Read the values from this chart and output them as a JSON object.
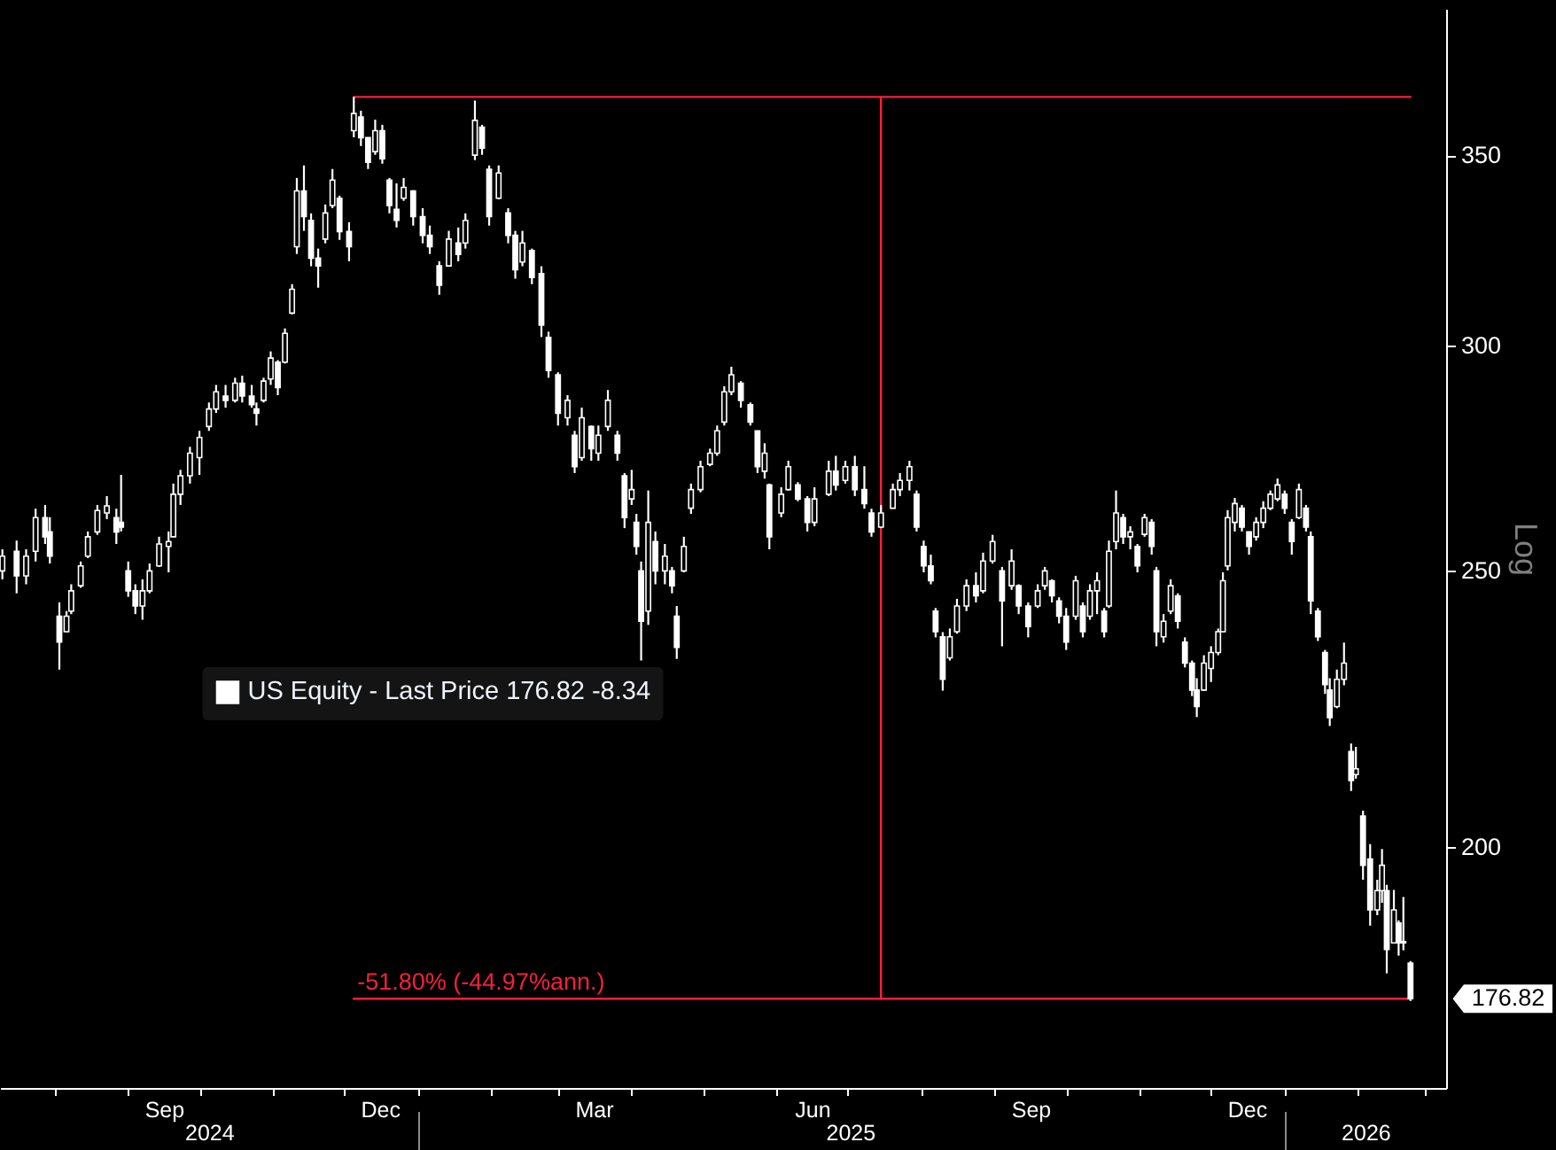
{
  "chart_data": {
    "type": "candlestick",
    "y2label": "Log",
    "log": "y2",
    "legend": "left",
    "xlim": [
      "2024-07-09",
      "2026-03-10"
    ],
    "xticks": [
      {
        "value": "2024-08-01",
        "label": null
      },
      {
        "value": "2024-09-01",
        "label": null
      },
      {
        "value": "2024-09-16",
        "label": "Sep"
      },
      {
        "value": "2024-10-01",
        "label": null
      },
      {
        "value": "2024-11-01",
        "label": null
      },
      {
        "value": "2024-12-01",
        "label": null
      },
      {
        "value": "2024-12-16",
        "label": "Dec"
      },
      {
        "value": "2025-01-01",
        "label": null
      },
      {
        "value": "2025-02-01",
        "label": null
      },
      {
        "value": "2025-03-01",
        "label": null
      },
      {
        "value": "2025-03-16",
        "label": "Mar"
      },
      {
        "value": "2025-04-01",
        "label": null
      },
      {
        "value": "2025-05-01",
        "label": null
      },
      {
        "value": "2025-06-01",
        "label": null
      },
      {
        "value": "2025-06-16",
        "label": "Jun"
      },
      {
        "value": "2025-07-01",
        "label": null
      },
      {
        "value": "2025-08-01",
        "label": null
      },
      {
        "value": "2025-09-01",
        "label": null
      },
      {
        "value": "2025-09-16",
        "label": "Sep"
      },
      {
        "value": "2025-10-01",
        "label": null
      },
      {
        "value": "2025-11-01",
        "label": null
      },
      {
        "value": "2025-12-01",
        "label": null
      },
      {
        "value": "2025-12-16",
        "label": "Dec"
      },
      {
        "value": "2026-01-01",
        "label": null
      },
      {
        "value": "2026-02-01",
        "label": null
      },
      {
        "value": "2026-03-01",
        "label": null
      }
    ],
    "x2lim": [
      "2024-07-09",
      "2026-03-10"
    ],
    "x2ticks": [
      {
        "value": "2024-10-05",
        "label": "2024"
      },
      {
        "value": "2025-01-01",
        "label": null
      },
      {
        "value": "2025-07-02",
        "label": "2025"
      },
      {
        "value": "2026-01-01",
        "label": null
      },
      {
        "value": "2026-02-04",
        "label": "2026"
      }
    ],
    "y2lim": [
      164.5,
      394
    ],
    "y2ticks": [
      200,
      250,
      300,
      350
    ],
    "series": [
      {
        "type": "line",
        "axis": "y2",
        "color": "#f5203c",
        "x": [
          "2024-12-05",
          "2026-02-23"
        ],
        "values": [
          366.9,
          366.9
        ]
      },
      {
        "type": "line",
        "axis": "y2",
        "color": "#f5203c",
        "x": [
          "2024-12-05",
          "2026-02-23"
        ],
        "values": [
          176.82,
          176.82
        ]
      },
      {
        "type": "line",
        "axis": "y2",
        "color": "#f5203c",
        "x": [
          "2025-07-15",
          "2025-07-15"
        ],
        "values": [
          366.9,
          176.82
        ]
      },
      {
        "name": "US Equity - Last Price 176.82 -8.34",
        "axis": "y2",
        "color": "#ffffff",
        "x": [
          "2024-07-10",
          "2024-07-16",
          "2024-07-20",
          "2024-07-24",
          "2024-07-28",
          "2024-07-30",
          "2024-08-03",
          "2024-08-06",
          "2024-08-08",
          "2024-08-12",
          "2024-08-15",
          "2024-08-19",
          "2024-08-23",
          "2024-08-27",
          "2024-08-29",
          "2024-09-01",
          "2024-09-04",
          "2024-09-07",
          "2024-09-10",
          "2024-09-14",
          "2024-09-18",
          "2024-09-20",
          "2024-09-23",
          "2024-09-27",
          "2024-10-01",
          "2024-10-05",
          "2024-10-08",
          "2024-10-12",
          "2024-10-16",
          "2024-10-19",
          "2024-10-23",
          "2024-10-25",
          "2024-10-28",
          "2024-10-31",
          "2024-11-03",
          "2024-11-06",
          "2024-11-09",
          "2024-11-11",
          "2024-11-14",
          "2024-11-17",
          "2024-11-20",
          "2024-11-23",
          "2024-11-26",
          "2024-11-29",
          "2024-12-03",
          "2024-12-05",
          "2024-12-08",
          "2024-12-11",
          "2024-12-14",
          "2024-12-17",
          "2024-12-20",
          "2024-12-23",
          "2024-12-26",
          "2024-12-30",
          "2025-01-03",
          "2025-01-06",
          "2025-01-10",
          "2025-01-14",
          "2025-01-18",
          "2025-01-21",
          "2025-01-25",
          "2025-01-28",
          "2025-01-31",
          "2025-02-04",
          "2025-02-08",
          "2025-02-11",
          "2025-02-14",
          "2025-02-18",
          "2025-02-22",
          "2025-02-25",
          "2025-03-01",
          "2025-03-05",
          "2025-03-08",
          "2025-03-11",
          "2025-03-15",
          "2025-03-18",
          "2025-03-22",
          "2025-03-26",
          "2025-03-29",
          "2025-04-01",
          "2025-04-03",
          "2025-04-05",
          "2025-04-08",
          "2025-04-11",
          "2025-04-15",
          "2025-04-18",
          "2025-04-20",
          "2025-04-23",
          "2025-04-26",
          "2025-04-30",
          "2025-05-04",
          "2025-05-07",
          "2025-05-10",
          "2025-05-13",
          "2025-05-17",
          "2025-05-21",
          "2025-05-24",
          "2025-05-27",
          "2025-05-29",
          "2025-06-03",
          "2025-06-06",
          "2025-06-10",
          "2025-06-14",
          "2025-06-17",
          "2025-06-23",
          "2025-06-26",
          "2025-06-30",
          "2025-07-04",
          "2025-07-08",
          "2025-07-11",
          "2025-07-15",
          "2025-07-20",
          "2025-07-23",
          "2025-07-27",
          "2025-07-30",
          "2025-08-02",
          "2025-08-05",
          "2025-08-07",
          "2025-08-10",
          "2025-08-13",
          "2025-08-16",
          "2025-08-20",
          "2025-08-24",
          "2025-08-27",
          "2025-08-31",
          "2025-09-04",
          "2025-09-08",
          "2025-09-11",
          "2025-09-15",
          "2025-09-19",
          "2025-09-22",
          "2025-09-25",
          "2025-09-28",
          "2025-10-01",
          "2025-10-05",
          "2025-10-08",
          "2025-10-11",
          "2025-10-14",
          "2025-10-17",
          "2025-10-19",
          "2025-10-22",
          "2025-10-25",
          "2025-10-28",
          "2025-10-31",
          "2025-11-03",
          "2025-11-06",
          "2025-11-08",
          "2025-11-11",
          "2025-11-14",
          "2025-11-17",
          "2025-11-20",
          "2025-11-23",
          "2025-11-25",
          "2025-11-28",
          "2025-12-01",
          "2025-12-04",
          "2025-12-06",
          "2025-12-08",
          "2025-12-11",
          "2025-12-14",
          "2025-12-17",
          "2025-12-20",
          "2025-12-23",
          "2025-12-26",
          "2025-12-29",
          "2026-01-01",
          "2026-01-04",
          "2026-01-07",
          "2026-01-10",
          "2026-01-12",
          "2026-01-15",
          "2026-01-18",
          "2026-01-20",
          "2026-01-23",
          "2026-01-26",
          "2026-01-29",
          "2026-01-31",
          "2026-02-03",
          "2026-02-06",
          "2026-02-09",
          "2026-02-11",
          "2026-02-13",
          "2026-02-16",
          "2026-02-18",
          "2026-02-20",
          "2026-02-23"
        ],
        "ohlc": [
          [
            250,
            254.4,
            248.3,
            253
          ],
          [
            254,
            256.2,
            245.5,
            249
          ],
          [
            249,
            254.4,
            247.3,
            253
          ],
          [
            254,
            262.9,
            251.9,
            261
          ],
          [
            261,
            263.7,
            255.5,
            257
          ],
          [
            258,
            261.1,
            251.5,
            253
          ],
          [
            241,
            243.7,
            230.8,
            236
          ],
          [
            238,
            242,
            237.9,
            241
          ],
          [
            242,
            247.3,
            241.4,
            246
          ],
          [
            247,
            251.9,
            246.6,
            251
          ],
          [
            253,
            258.1,
            252.6,
            257
          ],
          [
            258,
            263.7,
            257.4,
            262.5
          ],
          [
            262,
            265.6,
            260.7,
            263.5
          ],
          [
            261,
            262.9,
            255.5,
            258
          ],
          [
            260,
            270.2,
            258.1,
            259
          ],
          [
            250,
            251.9,
            244.8,
            246
          ],
          [
            246,
            247.3,
            241.4,
            243
          ],
          [
            243,
            248.3,
            240.3,
            246
          ],
          [
            246,
            251.5,
            245.5,
            250
          ],
          [
            251,
            257,
            250.8,
            255.5
          ],
          [
            255,
            258.1,
            249.7,
            256
          ],
          [
            257,
            268.3,
            257,
            266
          ],
          [
            266,
            271.3,
            263.7,
            270
          ],
          [
            270,
            276.4,
            268.3,
            275
          ],
          [
            274,
            280,
            270.2,
            278.5
          ],
          [
            281,
            286.5,
            280,
            285
          ],
          [
            285,
            290.6,
            284.1,
            289
          ],
          [
            288,
            290.6,
            285.3,
            287
          ],
          [
            287,
            292.3,
            286.5,
            291
          ],
          [
            291,
            292.8,
            286.5,
            288
          ],
          [
            288,
            290.6,
            285.3,
            286
          ],
          [
            285,
            286.5,
            281.2,
            284
          ],
          [
            287,
            292.3,
            286.5,
            291.5
          ],
          [
            292,
            298.6,
            290.6,
            297
          ],
          [
            296,
            296.5,
            288.2,
            290
          ],
          [
            296,
            304.2,
            295.7,
            303
          ],
          [
            308,
            315.3,
            307.7,
            314
          ],
          [
            325,
            343.6,
            323.1,
            340
          ],
          [
            340,
            347.1,
            329.2,
            333
          ],
          [
            332,
            333.9,
            319.9,
            322
          ],
          [
            322,
            324.5,
            314.4,
            320
          ],
          [
            327,
            336.3,
            325.9,
            334
          ],
          [
            336,
            346.1,
            335.3,
            343
          ],
          [
            338,
            338.7,
            326.8,
            329
          ],
          [
            329,
            331.5,
            321.2,
            325
          ],
          [
            357,
            366.9,
            355.1,
            362
          ],
          [
            361,
            362.8,
            352.6,
            355
          ],
          [
            355,
            355.1,
            346.1,
            348
          ],
          [
            351,
            360.2,
            350.1,
            357
          ],
          [
            357,
            358.7,
            347.6,
            349
          ],
          [
            343,
            343.6,
            333.9,
            336
          ],
          [
            335,
            342.1,
            330.1,
            332
          ],
          [
            338,
            343.6,
            337.3,
            341
          ],
          [
            340,
            340.2,
            330.6,
            333
          ],
          [
            333,
            335.3,
            325.9,
            328
          ],
          [
            328,
            330.6,
            323.1,
            325
          ],
          [
            320,
            321.2,
            312.6,
            315
          ],
          [
            320,
            329.2,
            319.9,
            327
          ],
          [
            326,
            330.1,
            321.2,
            323
          ],
          [
            326,
            333.9,
            324.5,
            332
          ],
          [
            350,
            365.8,
            348.6,
            360
          ],
          [
            358,
            358.7,
            350.1,
            352
          ],
          [
            346,
            347.1,
            330.6,
            333
          ],
          [
            338,
            347.1,
            337.7,
            345
          ],
          [
            334,
            335.3,
            325.9,
            328
          ],
          [
            328,
            329.2,
            316.7,
            319
          ],
          [
            321,
            329.2,
            319.9,
            326
          ],
          [
            324,
            324.5,
            315.3,
            317
          ],
          [
            318,
            319.9,
            302.1,
            305
          ],
          [
            302,
            303.4,
            292.3,
            294
          ],
          [
            293,
            293.6,
            281.2,
            284
          ],
          [
            283,
            288.2,
            281.2,
            287
          ],
          [
            279,
            280,
            270.6,
            272
          ],
          [
            274,
            285.3,
            273.3,
            283
          ],
          [
            281,
            281.2,
            273.3,
            276
          ],
          [
            275,
            281.2,
            273.3,
            279
          ],
          [
            281,
            289.4,
            280,
            287
          ],
          [
            279,
            280,
            273.3,
            275
          ],
          [
            270,
            270.6,
            258.8,
            261
          ],
          [
            265,
            271.3,
            263.7,
            267
          ],
          [
            260,
            261.8,
            253.3,
            255
          ],
          [
            250,
            251.9,
            232.5,
            240
          ],
          [
            242,
            266.8,
            239.3,
            260
          ],
          [
            256,
            258.1,
            247.3,
            250
          ],
          [
            250,
            255.5,
            247.3,
            253
          ],
          [
            250,
            250.8,
            245.5,
            247
          ],
          [
            241,
            243,
            232.8,
            235
          ],
          [
            250,
            257,
            249.7,
            255
          ],
          [
            263,
            268.3,
            261.8,
            267
          ],
          [
            267,
            273.3,
            266.4,
            272
          ],
          [
            272.5,
            276,
            272.1,
            275
          ],
          [
            275,
            281.2,
            274.4,
            280
          ],
          [
            282,
            290.3,
            281.2,
            289
          ],
          [
            289,
            294.9,
            288.2,
            293
          ],
          [
            291,
            291.5,
            285.3,
            287
          ],
          [
            286,
            286.5,
            281.2,
            282
          ],
          [
            280,
            280,
            270.6,
            272
          ],
          [
            271,
            277.2,
            269.4,
            275
          ],
          [
            268,
            268.3,
            254.4,
            257
          ],
          [
            262,
            267.5,
            261.1,
            266
          ],
          [
            267,
            273.3,
            266.8,
            272
          ],
          [
            268,
            268.6,
            264.5,
            265
          ],
          [
            265,
            265.6,
            258.1,
            260
          ],
          [
            260,
            267.5,
            259.2,
            265
          ],
          [
            266,
            273.3,
            265.6,
            271
          ],
          [
            271,
            274.4,
            266.8,
            268
          ],
          [
            269,
            273.3,
            268.3,
            272
          ],
          [
            272,
            274.4,
            265.6,
            267
          ],
          [
            267,
            272.1,
            262.9,
            264
          ],
          [
            262,
            262.9,
            257,
            258
          ],
          [
            259,
            263.7,
            258.8,
            262
          ],
          [
            263,
            268.3,
            262.9,
            267
          ],
          [
            267,
            270.6,
            265.6,
            269
          ],
          [
            269,
            273.3,
            266.8,
            272
          ],
          [
            266,
            266.8,
            258.1,
            259
          ],
          [
            255,
            256.2,
            249.7,
            251
          ],
          [
            251,
            253.3,
            247.3,
            248
          ],
          [
            242,
            242.6,
            236.9,
            238
          ],
          [
            237,
            237.9,
            226.9,
            229
          ],
          [
            233,
            238.6,
            232.5,
            237
          ],
          [
            238,
            244.4,
            237.6,
            243
          ],
          [
            243,
            248.3,
            242,
            247
          ],
          [
            247,
            249.7,
            243.7,
            245
          ],
          [
            246,
            253.7,
            245.5,
            252
          ],
          [
            252,
            257.4,
            251.5,
            256
          ],
          [
            250,
            250.8,
            235.2,
            244
          ],
          [
            247,
            254.4,
            246.2,
            252
          ],
          [
            247,
            247.3,
            241.4,
            243
          ],
          [
            243,
            243.7,
            236.9,
            239
          ],
          [
            243,
            247.3,
            242.6,
            246
          ],
          [
            247,
            250.8,
            246.2,
            250
          ],
          [
            248,
            248.3,
            243.7,
            245
          ],
          [
            244,
            244.7,
            239.6,
            241
          ],
          [
            241,
            242.6,
            234.5,
            236
          ],
          [
            241,
            249,
            240.3,
            248
          ],
          [
            243,
            243.7,
            236.9,
            238
          ],
          [
            241,
            247.3,
            240.3,
            246
          ],
          [
            246,
            249.7,
            241.4,
            248
          ],
          [
            242,
            242.6,
            236.9,
            238
          ],
          [
            243,
            256.2,
            242.6,
            254
          ],
          [
            256,
            266.8,
            254.4,
            262
          ],
          [
            261,
            261.8,
            255.5,
            257
          ],
          [
            257,
            259.2,
            254.4,
            258
          ],
          [
            255,
            255.5,
            249.7,
            251
          ],
          [
            257.5,
            261.8,
            257,
            261
          ],
          [
            260,
            260.7,
            253.3,
            255
          ],
          [
            250,
            250.8,
            235.2,
            238
          ],
          [
            237,
            241.4,
            235.9,
            240
          ],
          [
            242,
            248.3,
            241.4,
            247
          ],
          [
            245,
            245.5,
            238.6,
            240
          ],
          [
            236,
            236.9,
            231.2,
            232
          ],
          [
            232,
            232.5,
            225.9,
            227
          ],
          [
            227,
            229.2,
            222.1,
            224
          ],
          [
            227,
            233.5,
            226.9,
            232
          ],
          [
            231,
            235.2,
            228.5,
            234
          ],
          [
            234,
            238.6,
            233.5,
            238
          ],
          [
            238,
            249.7,
            237.9,
            248
          ],
          [
            251,
            262.6,
            250.1,
            261
          ],
          [
            260,
            265.2,
            258.1,
            264
          ],
          [
            263,
            263.7,
            258.1,
            259
          ],
          [
            258,
            258.1,
            253.3,
            255
          ],
          [
            257,
            261.1,
            256.2,
            260
          ],
          [
            260,
            264.5,
            258.8,
            263
          ],
          [
            263,
            266.8,
            262.6,
            266
          ],
          [
            265,
            269.4,
            264.5,
            268
          ],
          [
            266,
            266.8,
            261.8,
            263
          ],
          [
            260,
            260.7,
            253.3,
            256
          ],
          [
            261,
            268.3,
            260.7,
            267
          ],
          [
            263,
            263.7,
            258.1,
            259
          ],
          [
            257,
            258.1,
            241.4,
            244
          ],
          [
            242,
            242.6,
            236.2,
            237
          ],
          [
            234,
            234.5,
            226.3,
            228
          ],
          [
            227,
            229.2,
            220.5,
            222
          ],
          [
            224,
            230.8,
            223.7,
            229
          ],
          [
            229,
            235.9,
            227.9,
            232
          ],
          [
            216,
            217.4,
            209.2,
            211
          ],
          [
            212,
            216.8,
            211.3,
            213
          ],
          [
            205,
            205.9,
            194.7,
            197
          ],
          [
            198,
            200.4,
            187.6,
            190
          ],
          [
            190,
            194.7,
            189.2,
            193
          ],
          [
            193,
            199.6,
            191.1,
            197
          ],
          [
            193,
            193.9,
            180.5,
            184
          ],
          [
            185,
            193.1,
            184.9,
            190
          ],
          [
            188,
            188.4,
            183.1,
            185
          ],
          [
            185,
            192,
            183.9,
            185.2
          ],
          [
            182,
            182.3,
            176.5,
            176.82
          ]
        ]
      }
    ],
    "annotations": [
      "-51.80% (-44.97%ann.)",
      "176.82"
    ]
  }
}
